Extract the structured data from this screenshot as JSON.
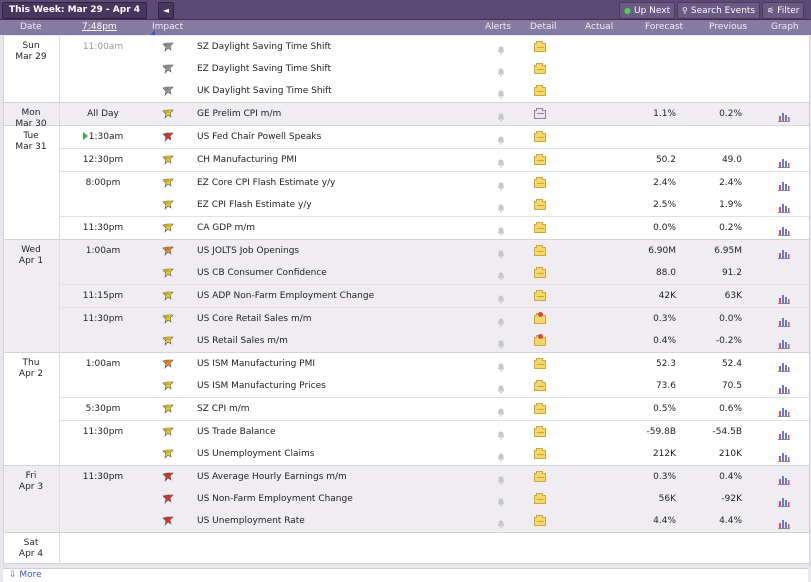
{
  "toolbar": {
    "week_label": "This Week: Mar 29 - Apr 4",
    "prev_label": "◄",
    "next_label": "►",
    "up_next_label": "Up Next",
    "search_label": "Search Events",
    "filter_label": "Filter"
  },
  "header": {
    "date": "Date",
    "time": "7:48pm",
    "impact": "Impact",
    "alerts": "Alerts",
    "detail": "Detail",
    "actual": "Actual",
    "forecast": "Forecast",
    "previous": "Previous",
    "graph": "Graph"
  },
  "colors": {
    "impact_high": "#e0312b",
    "impact_medium": "#f08b23",
    "impact_low": "#f2d21c",
    "impact_none": "#9c9c9c"
  },
  "days": [
    {
      "label_line1": "Sun",
      "label_line2": "Mar 29",
      "groups": [
        {
          "time": "11:00am",
          "time_dim": true,
          "events": [
            {
              "name": "SZ Daylight Saving Time Shift",
              "impact": "none",
              "detail": "folder",
              "forecast": "",
              "previous": "",
              "graph": false
            },
            {
              "name": "EZ Daylight Saving Time Shift",
              "impact": "none",
              "detail": "folder",
              "forecast": "",
              "previous": "",
              "graph": false
            },
            {
              "name": "UK Daylight Saving Time Shift",
              "impact": "none",
              "detail": "folder",
              "forecast": "",
              "previous": "",
              "graph": false
            }
          ]
        }
      ]
    },
    {
      "label_line1": "Mon",
      "label_line2": "Mar 30",
      "alt": true,
      "groups": [
        {
          "time": "All Day",
          "events": [
            {
              "name": "GE Prelim CPI m/m",
              "impact": "low",
              "detail": "doc",
              "forecast": "1.1%",
              "previous": "0.2%",
              "graph": true
            }
          ]
        }
      ]
    },
    {
      "label_line1": "Tue",
      "label_line2": "Mar 31",
      "groups": [
        {
          "time": "1:30am",
          "live": true,
          "events": [
            {
              "name": "US Fed Chair Powell Speaks",
              "impact": "high",
              "detail": "folder",
              "forecast": "",
              "previous": "",
              "graph": false
            }
          ]
        },
        {
          "time": "12:30pm",
          "events": [
            {
              "name": "CH Manufacturing PMI",
              "impact": "low",
              "detail": "folder",
              "forecast": "50.2",
              "previous": "49.0",
              "graph": true
            }
          ]
        },
        {
          "time": "8:00pm",
          "events": [
            {
              "name": "EZ Core CPI Flash Estimate y/y",
              "impact": "low",
              "detail": "folder",
              "forecast": "2.4%",
              "previous": "2.4%",
              "graph": true
            },
            {
              "name": "EZ CPI Flash Estimate y/y",
              "impact": "low",
              "detail": "folder",
              "forecast": "2.5%",
              "previous": "1.9%",
              "graph": true
            }
          ]
        },
        {
          "time": "11:30pm",
          "events": [
            {
              "name": "CA GDP m/m",
              "impact": "low",
              "detail": "folder",
              "forecast": "0.0%",
              "previous": "0.2%",
              "graph": true
            }
          ]
        }
      ]
    },
    {
      "label_line1": "Wed",
      "label_line2": "Apr 1",
      "alt": true,
      "groups": [
        {
          "time": "1:00am",
          "events": [
            {
              "name": "US JOLTS Job Openings",
              "impact": "medium",
              "detail": "folder",
              "forecast": "6.90M",
              "previous": "6.95M",
              "graph": true
            },
            {
              "name": "US CB Consumer Confidence",
              "impact": "low",
              "detail": "folder",
              "forecast": "88.0",
              "previous": "91.2",
              "graph": false
            }
          ]
        },
        {
          "time": "11:15pm",
          "events": [
            {
              "name": "US ADP Non-Farm Employment Change",
              "impact": "low",
              "detail": "folder",
              "forecast": "42K",
              "previous": "63K",
              "graph": true
            }
          ]
        },
        {
          "time": "11:30pm",
          "events": [
            {
              "name": "US Core Retail Sales m/m",
              "impact": "low",
              "detail": "red",
              "forecast": "0.3%",
              "previous": "0.0%",
              "graph": true
            },
            {
              "name": "US Retail Sales m/m",
              "impact": "low",
              "detail": "red",
              "forecast": "0.4%",
              "previous": "-0.2%",
              "graph": true
            }
          ]
        }
      ]
    },
    {
      "label_line1": "Thu",
      "label_line2": "Apr 2",
      "groups": [
        {
          "time": "1:00am",
          "events": [
            {
              "name": "US ISM Manufacturing PMI",
              "impact": "medium",
              "detail": "folder",
              "forecast": "52.3",
              "previous": "52.4",
              "graph": true
            },
            {
              "name": "US ISM Manufacturing Prices",
              "impact": "low",
              "detail": "folder",
              "forecast": "73.6",
              "previous": "70.5",
              "graph": true
            }
          ]
        },
        {
          "time": "5:30pm",
          "events": [
            {
              "name": "SZ CPI m/m",
              "impact": "low",
              "detail": "folder",
              "forecast": "0.5%",
              "previous": "0.6%",
              "graph": true
            }
          ]
        },
        {
          "time": "11:30pm",
          "events": [
            {
              "name": "US Trade Balance",
              "impact": "low",
              "detail": "folder",
              "forecast": "-59.8B",
              "previous": "-54.5B",
              "graph": true
            },
            {
              "name": "US Unemployment Claims",
              "impact": "low",
              "detail": "folder",
              "forecast": "212K",
              "previous": "210K",
              "graph": true
            }
          ]
        }
      ]
    },
    {
      "label_line1": "Fri",
      "label_line2": "Apr 3",
      "alt": true,
      "groups": [
        {
          "time": "11:30pm",
          "events": [
            {
              "name": "US Average Hourly Earnings m/m",
              "impact": "high",
              "detail": "folder",
              "forecast": "0.3%",
              "previous": "0.4%",
              "graph": true
            },
            {
              "name": "US Non-Farm Employment Change",
              "impact": "high",
              "detail": "folder",
              "forecast": "56K",
              "previous": "-92K",
              "graph": true
            },
            {
              "name": "US Unemployment Rate",
              "impact": "high",
              "detail": "folder",
              "forecast": "4.4%",
              "previous": "4.4%",
              "graph": true
            }
          ]
        }
      ]
    },
    {
      "label_line1": "Sat",
      "label_line2": "Apr 4",
      "groups": []
    }
  ],
  "footer": {
    "more_label": "More"
  }
}
